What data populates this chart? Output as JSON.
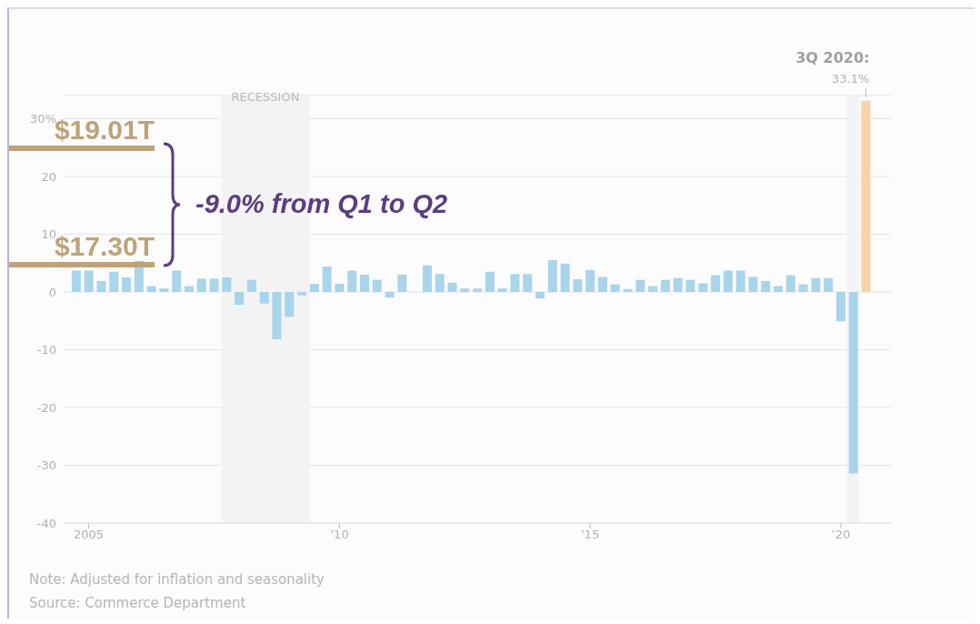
{
  "chart_data": {
    "type": "bar",
    "x": [
      2004.75,
      2005,
      2005.25,
      2005.5,
      2005.75,
      2006,
      2006.25,
      2006.5,
      2006.75,
      2007,
      2007.25,
      2007.5,
      2007.75,
      2008,
      2008.25,
      2008.5,
      2008.75,
      2009,
      2009.25,
      2009.5,
      2009.75,
      2010,
      2010.25,
      2010.5,
      2010.75,
      2011,
      2011.25,
      2011.5,
      2011.75,
      2012,
      2012.25,
      2012.5,
      2012.75,
      2013,
      2013.25,
      2013.5,
      2013.75,
      2014,
      2014.25,
      2014.5,
      2014.75,
      2015,
      2015.25,
      2015.5,
      2015.75,
      2016,
      2016.25,
      2016.5,
      2016.75,
      2017,
      2017.25,
      2017.5,
      2017.75,
      2018,
      2018.25,
      2018.5,
      2018.75,
      2019,
      2019.25,
      2019.5,
      2019.75,
      2020,
      2020.25,
      2020.5
    ],
    "values": [
      3.7,
      3.7,
      1.9,
      3.5,
      2.5,
      5.4,
      1.0,
      0.6,
      3.7,
      1.0,
      2.3,
      2.3,
      2.5,
      -2.2,
      2.1,
      -2.0,
      -8.2,
      -4.3,
      -0.6,
      1.4,
      4.4,
      1.4,
      3.7,
      3.0,
      2.1,
      -1.0,
      3.0,
      0.0,
      4.6,
      3.1,
      1.6,
      0.6,
      0.6,
      3.5,
      0.6,
      3.1,
      3.1,
      -1.1,
      5.5,
      4.9,
      2.2,
      3.8,
      2.6,
      1.3,
      0.5,
      2.1,
      1.0,
      2.1,
      2.4,
      2.1,
      1.5,
      2.9,
      3.7,
      3.7,
      2.6,
      1.9,
      1.0,
      2.9,
      1.3,
      2.4,
      2.4,
      -5.1,
      -31.4,
      33.1
    ],
    "colors": [
      "#a8d4ec",
      "#a8d4ec",
      "#a8d4ec",
      "#a8d4ec",
      "#a8d4ec",
      "#a8d4ec",
      "#a8d4ec",
      "#a8d4ec",
      "#a8d4ec",
      "#a8d4ec",
      "#a8d4ec",
      "#a8d4ec",
      "#a8d4ec",
      "#a8d4ec",
      "#a8d4ec",
      "#a8d4ec",
      "#a8d4ec",
      "#a8d4ec",
      "#a8d4ec",
      "#a8d4ec",
      "#a8d4ec",
      "#a8d4ec",
      "#a8d4ec",
      "#a8d4ec",
      "#a8d4ec",
      "#a8d4ec",
      "#a8d4ec",
      "#a8d4ec",
      "#a8d4ec",
      "#a8d4ec",
      "#a8d4ec",
      "#a8d4ec",
      "#a8d4ec",
      "#a8d4ec",
      "#a8d4ec",
      "#a8d4ec",
      "#a8d4ec",
      "#a8d4ec",
      "#a8d4ec",
      "#a8d4ec",
      "#a8d4ec",
      "#a8d4ec",
      "#a8d4ec",
      "#a8d4ec",
      "#a8d4ec",
      "#a8d4ec",
      "#a8d4ec",
      "#a8d4ec",
      "#a8d4ec",
      "#a8d4ec",
      "#a8d4ec",
      "#a8d4ec",
      "#a8d4ec",
      "#a8d4ec",
      "#a8d4ec",
      "#a8d4ec",
      "#a8d4ec",
      "#a8d4ec",
      "#a8d4ec",
      "#a8d4ec",
      "#a8d4ec",
      "#a8d4ec",
      "#a8d4ec",
      "#f8d3a6"
    ],
    "xlim": [
      2004.5,
      2021
    ],
    "xticks": [
      {
        "value": 2005,
        "label": "2005"
      },
      {
        "value": 2010,
        "label": "’10"
      },
      {
        "value": 2015,
        "label": "’15"
      },
      {
        "value": 2020,
        "label": "’20"
      }
    ],
    "ylim": [
      -40,
      34
    ],
    "yticks": [
      {
        "value": 30,
        "label": "30%"
      },
      20,
      10,
      0,
      -10,
      -20,
      -30,
      -40
    ],
    "grid": "y",
    "bands": [
      {
        "axis": "x",
        "from": 2007.65,
        "to": 2009.4,
        "label": "RECESSION",
        "color": "#f3f3f3"
      },
      {
        "axis": "x",
        "from": 2020.12,
        "to": 2020.37,
        "label": null,
        "color": "#f3f3f3"
      }
    ],
    "annotations": [
      "3Q 2020:",
      {
        "text": "33.1%",
        "x": 2020.5,
        "y": 33.1
      },
      "$19.01T",
      "$17.30T",
      "-9.0% from Q1 to Q2",
      "Note: Adjusted for inflation and seasonality",
      "Source: Commerce Department"
    ]
  }
}
